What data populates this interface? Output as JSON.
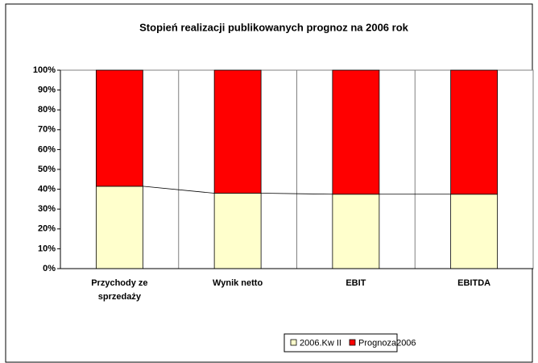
{
  "chart_data": {
    "type": "stacked_bar_100",
    "title": "Stopień realizacji publikowanych prognoz na 2006 rok",
    "categories": [
      "Przychody ze sprzedaży",
      "Wynik netto",
      "EBIT",
      "EBITDA"
    ],
    "series": [
      {
        "name": "2006.Kw II",
        "color": "#ffffcc",
        "values": [
          41.5,
          38,
          37.5,
          37.5
        ]
      },
      {
        "name": "Prognoza2006",
        "color": "#ff0000",
        "values": [
          58.5,
          62,
          62.5,
          62.5
        ]
      }
    ],
    "ylim": [
      0,
      100
    ],
    "yticks": [
      {
        "value": 0,
        "label": "0%"
      },
      {
        "value": 10,
        "label": "10%"
      },
      {
        "value": 20,
        "label": "20%"
      },
      {
        "value": 30,
        "label": "30%"
      },
      {
        "value": 40,
        "label": "40%"
      },
      {
        "value": 50,
        "label": "50%"
      },
      {
        "value": 60,
        "label": "60%"
      },
      {
        "value": 70,
        "label": "70%"
      },
      {
        "value": 80,
        "label": "80%"
      },
      {
        "value": 90,
        "label": "90%"
      },
      {
        "value": 100,
        "label": "100%"
      }
    ],
    "legend": "bottom"
  }
}
